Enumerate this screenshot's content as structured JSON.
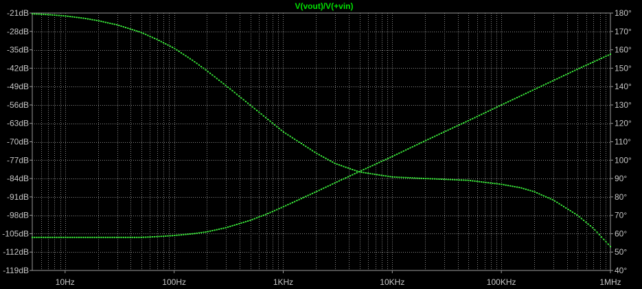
{
  "chart_data": {
    "type": "line",
    "title": "V(vout)/V(+vin)",
    "xscale": "log",
    "xlim": [
      5,
      1000000
    ],
    "ylim_left": [
      -119,
      -21
    ],
    "ylim_right": [
      40,
      180
    ],
    "xlabel": "",
    "ylabel_left": "",
    "ylabel_right": "",
    "grid": "on (major and minor, dotted)",
    "legend": "none",
    "x_tick_values": [
      10,
      100,
      1000,
      10000,
      100000,
      1000000
    ],
    "x_tick_labels": [
      "10Hz",
      "100Hz",
      "1KHz",
      "10KHz",
      "100KHz",
      "1MHz"
    ],
    "y_left_tick_values": [
      -21,
      -28,
      -35,
      -42,
      -49,
      -56,
      -63,
      -70,
      -77,
      -84,
      -91,
      -98,
      -105,
      -112,
      -119
    ],
    "y_left_tick_labels": [
      "-21dB",
      "-28dB",
      "-35dB",
      "-42dB",
      "-49dB",
      "-56dB",
      "-63dB",
      "-70dB",
      "-77dB",
      "-84dB",
      "-91dB",
      "-98dB",
      "-105dB",
      "-112dB",
      "-119dB"
    ],
    "y_right_tick_values": [
      180,
      170,
      160,
      150,
      140,
      130,
      120,
      110,
      100,
      90,
      80,
      70,
      60,
      50,
      40
    ],
    "y_right_tick_labels": [
      "180°",
      "170°",
      "160°",
      "150°",
      "140°",
      "130°",
      "120°",
      "110°",
      "100°",
      "90°",
      "80°",
      "70°",
      "60°",
      "50°",
      "40°"
    ],
    "series": [
      {
        "axis": "left",
        "x": [
          5,
          7,
          10,
          15,
          20,
          30,
          50,
          70,
          100,
          150,
          200,
          300,
          500,
          700,
          1000,
          2000,
          3000,
          5000,
          10000,
          20000,
          30000,
          50000,
          100000,
          150000,
          200000,
          300000,
          500000,
          700000,
          1000000
        ],
        "values": [
          -21.3,
          -21.6,
          -22.1,
          -23,
          -23.9,
          -25.5,
          -28.4,
          -31.1,
          -34.4,
          -39.2,
          -43,
          -48.7,
          -56.1,
          -61,
          -66.2,
          -74.3,
          -78.3,
          -81.5,
          -83.4,
          -84,
          -84.3,
          -84.7,
          -86.2,
          -87.5,
          -89,
          -92.2,
          -98,
          -103,
          -109.9
        ]
      },
      {
        "axis": "right",
        "x": [
          5,
          10,
          20,
          30,
          50,
          70,
          100,
          150,
          200,
          300,
          500,
          700,
          1000,
          2000,
          3000,
          5000,
          10000,
          20000,
          30000,
          50000,
          100000,
          200000,
          300000,
          500000,
          1000000
        ],
        "values": [
          58,
          58,
          58,
          58,
          58,
          58.4,
          59,
          60,
          61,
          63.3,
          67.3,
          70.6,
          74.6,
          82.8,
          87.7,
          93.8,
          102,
          110.5,
          115.4,
          121.5,
          130,
          138.4,
          143.3,
          149.5,
          157.6
        ]
      }
    ]
  },
  "style": {
    "background": "#000000",
    "frame_color": "#9a9a9a",
    "grid_color": "#8a8a8a",
    "trace_color": "#3cf03c",
    "label_color": "#c8c8c8",
    "title_color": "#00e000"
  }
}
